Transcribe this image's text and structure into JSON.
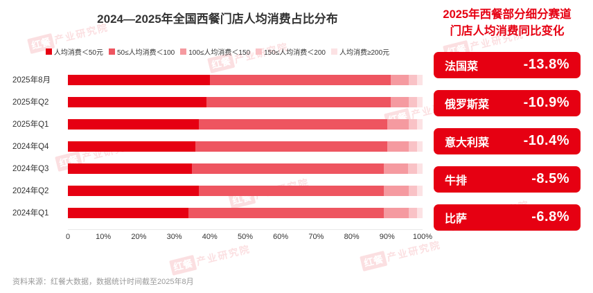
{
  "chart_data": {
    "type": "bar",
    "orientation": "horizontal-stacked",
    "title": "2024—2025年全国西餐门店人均消费占比分布",
    "categories": [
      "2025年8月",
      "2025年Q2",
      "2025年Q1",
      "2024年Q4",
      "2024年Q3",
      "2024年Q2",
      "2024年Q1"
    ],
    "series": [
      {
        "name": "人均消费＜50元",
        "color": "#e60012",
        "values": [
          40,
          39,
          37,
          36,
          35,
          37,
          34
        ]
      },
      {
        "name": "50≤人均消费＜100",
        "color": "#ee5560",
        "values": [
          51,
          52,
          53,
          54,
          54,
          52,
          55
        ]
      },
      {
        "name": "100≤人均消费＜150",
        "color": "#f59aa0",
        "values": [
          5,
          5,
          6,
          6,
          7,
          7,
          7
        ]
      },
      {
        "name": "150≤人均消费＜200",
        "color": "#f9c2c6",
        "values": [
          2.5,
          2.5,
          2.5,
          2.5,
          2.5,
          2.5,
          2.5
        ]
      },
      {
        "name": "人均消费≥200元",
        "color": "#fce2e4",
        "values": [
          1.5,
          1.5,
          1.5,
          1.5,
          1.5,
          1.5,
          1.5
        ]
      }
    ],
    "xlim": [
      0,
      100
    ],
    "x_ticks": [
      "0",
      "10%",
      "20%",
      "30%",
      "40%",
      "50%",
      "60%",
      "70%",
      "80%",
      "90%",
      "100%"
    ],
    "legend_position": "top",
    "grid": false
  },
  "panel": {
    "title_line1": "2025年西餐部分细分赛道",
    "title_line2": "门店人均消费同比变化",
    "items": [
      {
        "label": "法国菜",
        "value": "-13.8%"
      },
      {
        "label": "俄罗斯菜",
        "value": "-10.9%"
      },
      {
        "label": "意大利菜",
        "value": "-10.4%"
      },
      {
        "label": "牛排",
        "value": "-8.5%"
      },
      {
        "label": "比萨",
        "value": "-6.8%"
      }
    ]
  },
  "source": "资料来源：红餐大数据，数据统计时间截至2025年8月",
  "watermark": {
    "box": "红餐",
    "text": "产业研究院"
  },
  "colors": {
    "accent": "#e60012",
    "title_text": "#333333",
    "source_text": "#999999"
  }
}
